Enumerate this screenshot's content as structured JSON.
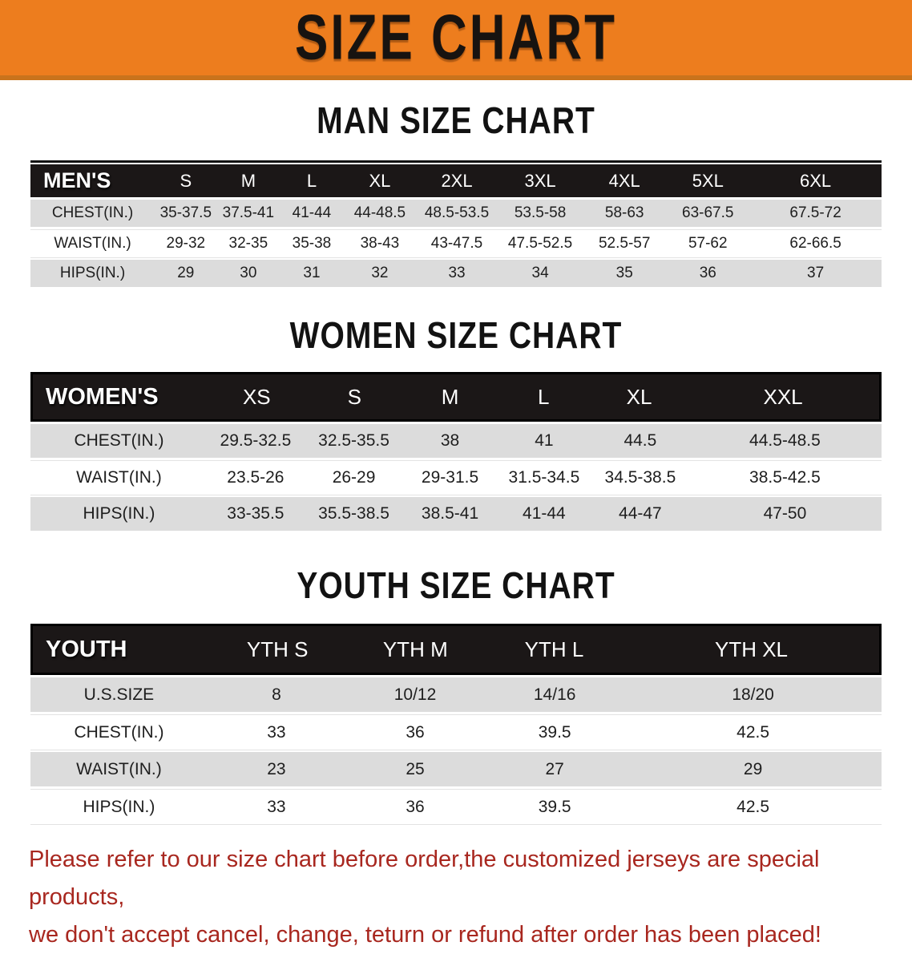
{
  "banner": {
    "title": "SIZE CHART"
  },
  "colors": {
    "banner_orange": "#ED7D1E",
    "banner_edge": "#C9731C",
    "header_bar": "#1B1717",
    "row_gray": "#DCDCDC",
    "disclaimer_red": "#A8271F"
  },
  "sections": [
    {
      "id": "men",
      "heading": "MAN SIZE CHART",
      "corner_label": "MEN'S",
      "columns": [
        "S",
        "M",
        "L",
        "XL",
        "2XL",
        "3XL",
        "4XL",
        "5XL",
        "6XL"
      ],
      "rows": [
        {
          "label": "CHEST(IN.)",
          "values": [
            "35-37.5",
            "37.5-41",
            "41-44",
            "44-48.5",
            "48.5-53.5",
            "53.5-58",
            "58-63",
            "63-67.5",
            "67.5-72"
          ]
        },
        {
          "label": "WAIST(IN.)",
          "values": [
            "29-32",
            "32-35",
            "35-38",
            "38-43",
            "43-47.5",
            "47.5-52.5",
            "52.5-57",
            "57-62",
            "62-66.5"
          ]
        },
        {
          "label": "HIPS(IN.)",
          "values": [
            "29",
            "30",
            "31",
            "32",
            "33",
            "34",
            "35",
            "36",
            "37"
          ]
        }
      ]
    },
    {
      "id": "women",
      "heading": "WOMEN SIZE CHART",
      "corner_label": "WOMEN'S",
      "columns": [
        "XS",
        "S",
        "M",
        "L",
        "XL",
        "XXL"
      ],
      "rows": [
        {
          "label": "CHEST(IN.)",
          "values": [
            "29.5-32.5",
            "32.5-35.5",
            "38",
            "41",
            "44.5",
            "44.5-48.5"
          ]
        },
        {
          "label": "WAIST(IN.)",
          "values": [
            "23.5-26",
            "26-29",
            "29-31.5",
            "31.5-34.5",
            "34.5-38.5",
            "38.5-42.5"
          ]
        },
        {
          "label": "HIPS(IN.)",
          "values": [
            "33-35.5",
            "35.5-38.5",
            "38.5-41",
            "41-44",
            "44-47",
            "47-50"
          ]
        }
      ]
    },
    {
      "id": "youth",
      "heading": "YOUTH SIZE CHART",
      "corner_label": "YOUTH",
      "columns": [
        "YTH S",
        "YTH M",
        "YTH L",
        "YTH XL"
      ],
      "rows": [
        {
          "label": "U.S.SIZE",
          "values": [
            "8",
            "10/12",
            "14/16",
            "18/20"
          ]
        },
        {
          "label": "CHEST(IN.)",
          "values": [
            "33",
            "36",
            "39.5",
            "42.5"
          ]
        },
        {
          "label": "WAIST(IN.)",
          "values": [
            "23",
            "25",
            "27",
            "29"
          ]
        },
        {
          "label": "HIPS(IN.)",
          "values": [
            "33",
            "36",
            "39.5",
            "42.5"
          ]
        }
      ]
    }
  ],
  "disclaimer": {
    "line1": "Please refer to our size chart before order,the customized jerseys are special products,",
    "line2": "we don't accept cancel, change, teturn or refund after order has been placed!"
  }
}
